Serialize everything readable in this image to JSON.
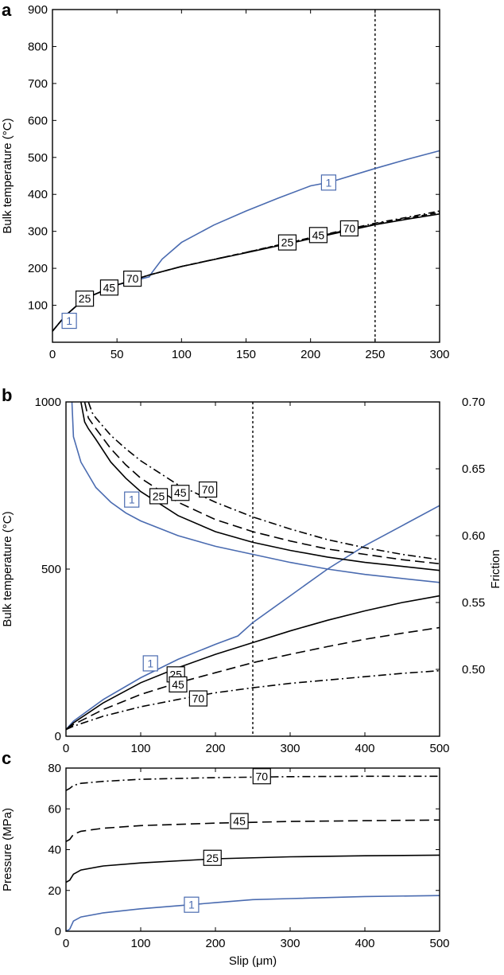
{
  "chart_data": [
    {
      "panel": "a",
      "type": "line",
      "xlabel": "",
      "ylabel": "Bulk temperature (°C)",
      "xlim": [
        0,
        300
      ],
      "ylim": [
        0,
        900
      ],
      "xticks": [
        0,
        50,
        100,
        150,
        200,
        250,
        300
      ],
      "yticks": [
        100,
        200,
        300,
        400,
        500,
        600,
        700,
        800,
        900
      ],
      "vline": 250,
      "series": [
        {
          "name": "1",
          "color": "#4a6bb0",
          "dash": "",
          "x": [
            0,
            10,
            25,
            50,
            75,
            77,
            85,
            100,
            125,
            150,
            175,
            200,
            215,
            250,
            275,
            300
          ],
          "y": [
            30,
            72,
            118,
            155,
            177,
            188,
            225,
            270,
            317,
            355,
            390,
            423,
            433,
            470,
            495,
            518
          ]
        },
        {
          "name": "70",
          "color": "#000000",
          "dash": "8,4,2,4",
          "x": [
            0,
            10,
            25,
            50,
            75,
            100,
            150,
            200,
            250,
            275,
            300
          ],
          "y": [
            30,
            72,
            118,
            155,
            182,
            205,
            243,
            283,
            322,
            338,
            355
          ]
        },
        {
          "name": "45",
          "color": "#000000",
          "dash": "7,4",
          "x": [
            0,
            10,
            25,
            50,
            75,
            100,
            150,
            200,
            250,
            275,
            300
          ],
          "y": [
            30,
            72,
            118,
            155,
            182,
            205,
            243,
            282,
            320,
            336,
            351
          ]
        },
        {
          "name": "25",
          "color": "#000000",
          "dash": "",
          "x": [
            0,
            10,
            25,
            50,
            75,
            100,
            150,
            200,
            250,
            275,
            300
          ],
          "y": [
            30,
            72,
            118,
            155,
            182,
            205,
            242,
            280,
            318,
            333,
            347
          ]
        }
      ],
      "annotations": [
        {
          "text": "1",
          "x": 13,
          "y": 58,
          "color": "#4a6bb0"
        },
        {
          "text": "25",
          "x": 25,
          "y": 118,
          "color": "#000000"
        },
        {
          "text": "45",
          "x": 44,
          "y": 148,
          "color": "#000000"
        },
        {
          "text": "70",
          "x": 62,
          "y": 172,
          "color": "#000000"
        },
        {
          "text": "1",
          "x": 214,
          "y": 432,
          "color": "#4a6bb0"
        },
        {
          "text": "25",
          "x": 182,
          "y": 270,
          "color": "#000000"
        },
        {
          "text": "45",
          "x": 206,
          "y": 290,
          "color": "#000000"
        },
        {
          "text": "70",
          "x": 230,
          "y": 308,
          "color": "#000000"
        }
      ]
    },
    {
      "panel": "b",
      "type": "line",
      "xlabel": "",
      "ylabel": "Bulk temperature (°C)",
      "y2label": "Friction",
      "xlim": [
        0,
        500
      ],
      "ylim": [
        0,
        1000
      ],
      "y2lim": [
        0.45,
        0.7
      ],
      "xticks": [
        0,
        100,
        200,
        300,
        400,
        500
      ],
      "yticks": [
        0,
        500,
        1000
      ],
      "y2ticks": [
        0.5,
        0.55,
        0.6,
        0.65,
        0.7
      ],
      "y2ticklabels": [
        "0.50",
        "0.55",
        "0.60",
        "0.65",
        "0.70"
      ],
      "vline": 250,
      "temperature_series": [
        {
          "name": "1",
          "color": "#4a6bb0",
          "dash": "",
          "x": [
            0,
            10,
            50,
            100,
            150,
            200,
            230,
            250,
            300,
            350,
            400,
            450,
            500
          ],
          "y": [
            20,
            45,
            110,
            175,
            230,
            275,
            300,
            340,
            420,
            500,
            570,
            630,
            690
          ]
        },
        {
          "name": "25",
          "color": "#000000",
          "dash": "",
          "x": [
            0,
            10,
            50,
            100,
            150,
            200,
            250,
            300,
            350,
            400,
            450,
            500
          ],
          "y": [
            20,
            40,
            100,
            160,
            205,
            245,
            280,
            315,
            347,
            375,
            400,
            420
          ]
        },
        {
          "name": "45",
          "color": "#000000",
          "dash": "12,6",
          "x": [
            0,
            10,
            50,
            100,
            150,
            200,
            250,
            300,
            350,
            400,
            450,
            500
          ],
          "y": [
            20,
            35,
            80,
            125,
            160,
            190,
            220,
            245,
            268,
            290,
            308,
            325
          ]
        },
        {
          "name": "70",
          "color": "#000000",
          "dash": "10,4,2,4",
          "x": [
            0,
            10,
            50,
            100,
            150,
            200,
            250,
            300,
            350,
            400,
            450,
            500
          ],
          "y": [
            20,
            30,
            60,
            88,
            110,
            130,
            145,
            158,
            168,
            178,
            188,
            196
          ]
        }
      ],
      "friction_series": [
        {
          "name": "1",
          "color": "#4a6bb0",
          "dash": "",
          "x": [
            8,
            10,
            20,
            40,
            60,
            80,
            100,
            150,
            200,
            250,
            300,
            350,
            400,
            450,
            500
          ],
          "y": [
            0.7,
            0.674,
            0.655,
            0.636,
            0.625,
            0.617,
            0.611,
            0.6,
            0.592,
            0.586,
            0.58,
            0.575,
            0.571,
            0.568,
            0.565
          ]
        },
        {
          "name": "25",
          "color": "#000000",
          "dash": "",
          "x": [
            20,
            25,
            30,
            40,
            60,
            80,
            100,
            150,
            200,
            250,
            300,
            350,
            400,
            450,
            500
          ],
          "y": [
            0.7,
            0.685,
            0.68,
            0.672,
            0.655,
            0.643,
            0.633,
            0.615,
            0.603,
            0.595,
            0.589,
            0.584,
            0.58,
            0.577,
            0.574
          ]
        },
        {
          "name": "45",
          "color": "#000000",
          "dash": "12,6",
          "x": [
            25,
            30,
            40,
            60,
            80,
            100,
            150,
            200,
            250,
            300,
            350,
            400,
            450,
            500
          ],
          "y": [
            0.7,
            0.688,
            0.68,
            0.665,
            0.653,
            0.643,
            0.625,
            0.612,
            0.603,
            0.596,
            0.59,
            0.586,
            0.582,
            0.579
          ]
        },
        {
          "name": "70",
          "color": "#000000",
          "dash": "10,4,2,4",
          "x": [
            30,
            35,
            40,
            60,
            80,
            100,
            150,
            200,
            250,
            300,
            350,
            400,
            450,
            500
          ],
          "y": [
            0.7,
            0.692,
            0.688,
            0.675,
            0.665,
            0.656,
            0.638,
            0.625,
            0.614,
            0.605,
            0.597,
            0.591,
            0.586,
            0.582
          ]
        }
      ],
      "annotations": [
        {
          "text": "1",
          "x": 88,
          "y": 708,
          "color": "#4a6bb0"
        },
        {
          "text": "25",
          "x": 124,
          "y": 718,
          "color": "#000000"
        },
        {
          "text": "45",
          "x": 153,
          "y": 728,
          "color": "#000000"
        },
        {
          "text": "70",
          "x": 190,
          "y": 738,
          "color": "#000000"
        },
        {
          "text": "1",
          "x": 113,
          "y": 218,
          "color": "#4a6bb0"
        },
        {
          "text": "25",
          "x": 147,
          "y": 185,
          "color": "#000000"
        },
        {
          "text": "45",
          "x": 150,
          "y": 155,
          "color": "#000000"
        },
        {
          "text": "70",
          "x": 177,
          "y": 113,
          "color": "#000000"
        }
      ]
    },
    {
      "panel": "c",
      "type": "line",
      "xlabel": "Slip (μm)",
      "ylabel": "Pressure (MPa)",
      "xlim": [
        0,
        500
      ],
      "ylim": [
        0,
        80
      ],
      "xticks": [
        0,
        100,
        200,
        300,
        400,
        500
      ],
      "yticks": [
        0,
        20,
        40,
        60,
        80
      ],
      "series": [
        {
          "name": "70",
          "color": "#000000",
          "dash": "10,4,2,4",
          "x": [
            0,
            5,
            10,
            20,
            50,
            100,
            200,
            300,
            400,
            500
          ],
          "y": [
            69,
            70,
            71.5,
            72.5,
            73.5,
            74.5,
            75.3,
            75.8,
            76,
            76
          ]
        },
        {
          "name": "45",
          "color": "#000000",
          "dash": "12,6",
          "x": [
            0,
            5,
            10,
            20,
            50,
            100,
            200,
            300,
            400,
            500
          ],
          "y": [
            44,
            45,
            47.5,
            49,
            50.5,
            51.8,
            53,
            53.8,
            54.2,
            54.5
          ]
        },
        {
          "name": "25",
          "color": "#000000",
          "dash": "",
          "x": [
            0,
            5,
            10,
            20,
            50,
            100,
            200,
            300,
            400,
            500
          ],
          "y": [
            24,
            25,
            28,
            30,
            32,
            33.5,
            35.5,
            36.5,
            37,
            37.3
          ]
        },
        {
          "name": "1",
          "color": "#4a6bb0",
          "dash": "",
          "x": [
            0,
            5,
            10,
            20,
            50,
            100,
            200,
            250,
            300,
            400,
            500
          ],
          "y": [
            0,
            1,
            5,
            7,
            9,
            11,
            14,
            15.5,
            16,
            17,
            17.5
          ]
        }
      ],
      "annotations": [
        {
          "text": "70",
          "x": 262,
          "y": 76,
          "color": "#000000"
        },
        {
          "text": "45",
          "x": 232,
          "y": 54,
          "color": "#000000"
        },
        {
          "text": "25",
          "x": 196,
          "y": 36,
          "color": "#000000"
        },
        {
          "text": "1",
          "x": 168,
          "y": 13,
          "color": "#4a6bb0"
        }
      ]
    }
  ]
}
